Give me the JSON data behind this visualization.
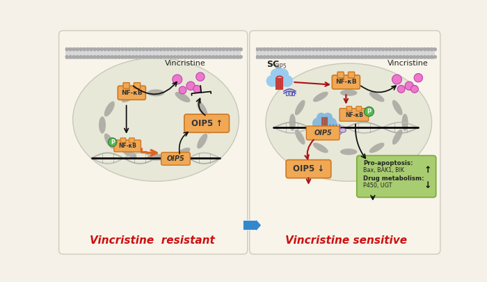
{
  "bg_color": "#f5f0e8",
  "left_panel_bg": "#f8f4ea",
  "right_panel_bg": "#f8f4ea",
  "panel_border": "#ccccbb",
  "membrane_dark": "#999999",
  "membrane_mid": "#b8b8b8",
  "membrane_light": "#d0d0d0",
  "cell_interior": "#e8e8d5",
  "cell_border": "#ccccaa",
  "dna_main": "#aaaaaa",
  "dna_strand1": "#999999",
  "dna_strand2": "#bbbbbb",
  "orange_box_fc": "#f0a855",
  "orange_box_ec": "#cc7722",
  "green_box_fc": "#a8cc70",
  "green_box_ec": "#77aa33",
  "phospho_fc": "#55bb55",
  "phospho_ec": "#337733",
  "pink_fc": "#ee77cc",
  "pink_ec": "#bb44aa",
  "blue_cloud": "#88bbdd",
  "sgRNA_red": "#cc3333",
  "sgRNA_blue": "#5555bb",
  "sgRNA_green": "#448844",
  "black_arrow": "#111111",
  "red_arrow": "#aa1111",
  "orange_arrow": "#dd6622",
  "blue_arrow": "#3388cc",
  "left_title": "Vincristine  resistant",
  "right_title": "Vincristine sensitive",
  "title_color": "#cc1111",
  "vincristine_label": "Vincristine",
  "nfkb_label": "NF-κB",
  "oip5_up_label": "OIP5 ↑",
  "oip5_down_label": "OIP5 ↓",
  "oip5_label": "OIP5",
  "sc_label": "SC",
  "sc_sub": "OIP5",
  "p_label": "P",
  "pro_apop_line1": "Pro-apoptosis:",
  "pro_apop_line2": "Bax, BAK1, BIK",
  "drug_meta_line1": "Drug metabolism:",
  "drug_meta_line2": "P450, UGT"
}
